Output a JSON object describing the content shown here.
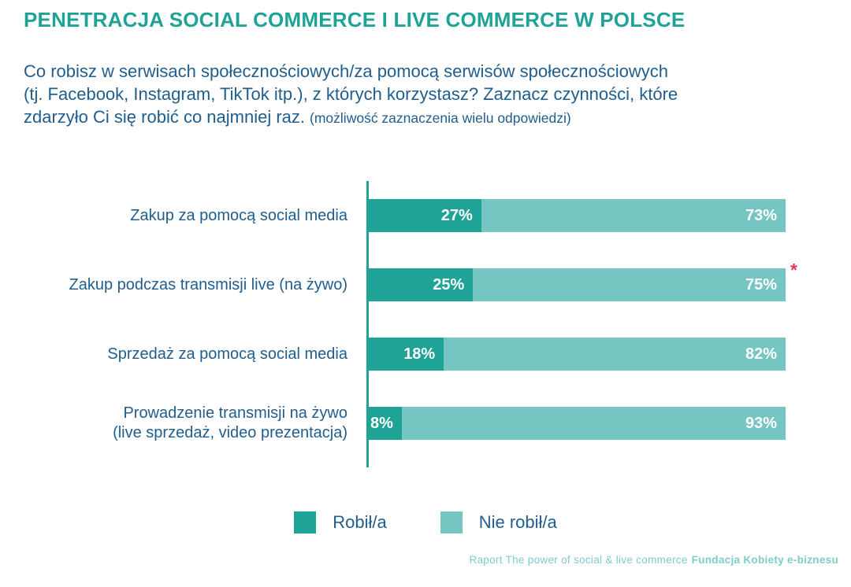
{
  "page": {
    "title": "PENETRACJA SOCIAL COMMERCE I LIVE COMMERCE W POLSCE",
    "question_main": "Co robisz w serwisach społecznościowych/za pomocą serwisów społecznościowych\n(tj. Facebook, Instagram, TikTok itp.), z których korzystasz? Zaznacz czynności, które\nzdarzyło Ci się robić co najmniej raz.",
    "question_note": "(możliwość zaznaczenia wielu odpowiedzi)",
    "footer_text": "Raport The power of social & live commerce",
    "footer_bold": "Fundacja Kobiety e-biznesu"
  },
  "colors": {
    "accent_teal": "#1fa396",
    "light_teal": "#75c6c3",
    "text_blue": "#205e8e",
    "footer_teal": "#7fcdc9",
    "asterisk_red": "#e8355e"
  },
  "chart_data": {
    "type": "bar",
    "subtype": "horizontal-stacked",
    "title": "PENETRACJA SOCIAL COMMERCE I LIVE COMMERCE W POLSCE",
    "categories": [
      "Zakup za pomocą social media",
      "Zakup podczas transmisji live (na żywo)",
      "Sprzedaż za pomocą social media",
      "Prowadzenie transmisji na żywo\n(live sprzedaż, video prezentacja)"
    ],
    "series": [
      {
        "name": "Robił/a",
        "color": "#1fa396",
        "values": [
          27,
          25,
          18,
          8
        ]
      },
      {
        "name": "Nie robił/a",
        "color": "#75c6c3",
        "values": [
          73,
          75,
          82,
          93
        ]
      }
    ],
    "value_suffix": "%",
    "annotations": [
      {
        "category_index": 1,
        "symbol": "*",
        "color": "#e8355e",
        "position": "right-of-bar"
      }
    ],
    "xlim": [
      0,
      100
    ],
    "grid": false,
    "legend_position": "bottom",
    "value_labels": "inside-right-white-bold"
  }
}
